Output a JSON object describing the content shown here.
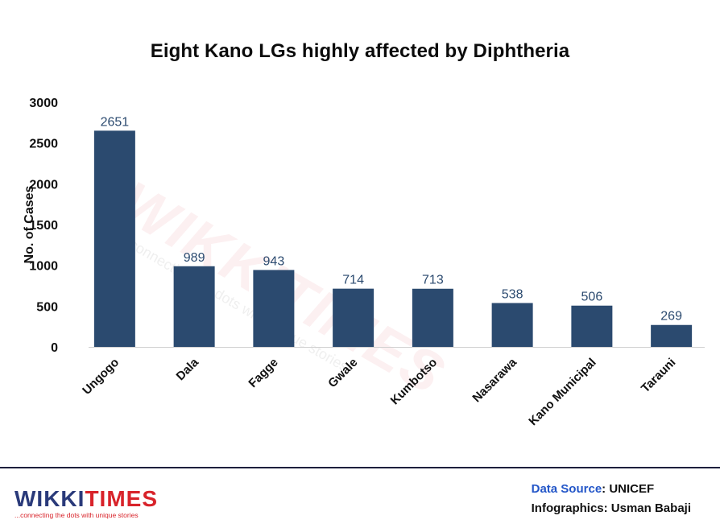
{
  "title": "Eight Kano LGs highly affected by Diphtheria",
  "colors": {
    "bar": "#2b4a6f",
    "label": "#2b4a6f",
    "axis_text": "#111111",
    "logo_blue": "#2a3a7a",
    "logo_red": "#d8232a",
    "source_label": "#2356c8"
  },
  "chart_data": {
    "type": "bar",
    "title": "Eight Kano LGs highly affected by Diphtheria",
    "xlabel": "",
    "ylabel": "No. of Cases",
    "ylim": [
      0,
      3000
    ],
    "yticks": [
      0,
      500,
      1000,
      1500,
      2000,
      2500,
      3000
    ],
    "grid": false,
    "categories": [
      "Ungogo",
      "Dala",
      "Fagge",
      "Gwale",
      "Kumbotso",
      "Nasarawa",
      "Kano Municipal",
      "Tarauni"
    ],
    "values": [
      2651,
      989,
      943,
      714,
      713,
      538,
      506,
      269
    ]
  },
  "watermark": {
    "main": "WIKKITIMES",
    "tagline": "...connecting the dots with unique stories"
  },
  "footer": {
    "logo_left": "WIKKI",
    "logo_right": "TIMES",
    "logo_tagline": "...connecting the dots with unique stories",
    "source_label": "Data Source",
    "source_value": ": UNICEF",
    "credit_label": "Infographics: Usman Babaji"
  }
}
